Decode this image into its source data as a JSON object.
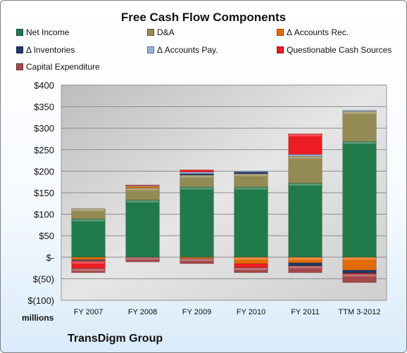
{
  "chart_data": {
    "type": "bar",
    "stacked": true,
    "title": "Free Cash Flow Components",
    "ylabel": "millions",
    "ylim": [
      -100,
      400
    ],
    "yticks": [
      400,
      350,
      300,
      250,
      200,
      150,
      100,
      50,
      0,
      -50,
      -100
    ],
    "ytick_labels": [
      "$400",
      "$350",
      "$300",
      "$250",
      "$200",
      "$150",
      "$100",
      "$50",
      "$-",
      "$(50)",
      "$(100)"
    ],
    "grid": true,
    "legend_position": "top",
    "categories": [
      "FY 2007",
      "FY 2008",
      "FY 2009",
      "FY 2010",
      "FY 2011",
      "TTM 3-2012"
    ],
    "series": [
      {
        "name": "Net Income",
        "color": "#217a4a",
        "values": [
          89,
          133,
          163,
          163,
          172,
          269
        ]
      },
      {
        "name": "D&A",
        "color": "#948a54",
        "values": [
          24,
          28,
          28,
          31,
          63,
          70
        ]
      },
      {
        "name": "Δ Accounts Rec.",
        "color": "#e36c0a",
        "values": [
          -6,
          4,
          -3,
          -15,
          -13,
          -30
        ]
      },
      {
        "name": "Δ Inventories",
        "color": "#1f3864",
        "values": [
          -2,
          0,
          3,
          4,
          -7,
          -7
        ]
      },
      {
        "name": "Δ Accounts Pay.",
        "color": "#95b3d7",
        "values": [
          -1,
          2,
          4,
          2,
          4,
          3
        ]
      },
      {
        "name": "Questionable Cash Sources",
        "color": "#ee1c24",
        "values": [
          -17,
          1,
          5,
          -9,
          48,
          -2
        ]
      },
      {
        "name": "Capital Expenditure",
        "color": "#a5484b",
        "values": [
          -10,
          -11,
          -12,
          -12,
          -16,
          -20
        ]
      }
    ]
  },
  "footer": {
    "units_label": "millions",
    "company": "TransDigm Group"
  }
}
